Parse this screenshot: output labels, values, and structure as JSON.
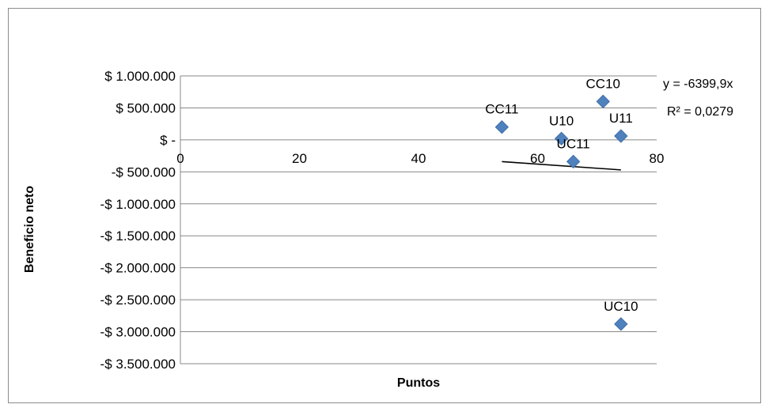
{
  "chart_data": {
    "type": "scatter",
    "title": "",
    "xlabel": "Puntos",
    "ylabel": "Beneficio neto",
    "xlim": [
      0,
      80
    ],
    "ylim": [
      -3500000,
      1000000
    ],
    "x_ticks": [
      0,
      20,
      40,
      60,
      80
    ],
    "x_tick_labels": [
      "0",
      "20",
      "40",
      "60",
      "80"
    ],
    "y_ticks": [
      1000000,
      500000,
      0,
      -500000,
      -1000000,
      -1500000,
      -2000000,
      -2500000,
      -3000000,
      -3500000
    ],
    "y_tick_labels": [
      "$ 1.000.000",
      "$ 500.000",
      "$ -",
      "-$ 500.000",
      "-$ 1.000.000",
      "-$ 1.500.000",
      "-$ 2.000.000",
      "-$ 2.500.000",
      "-$ 3.000.000",
      "-$ 3.500.000"
    ],
    "grid": "horizontal",
    "marker_color": "#4f81bd",
    "points": [
      {
        "label": "CC10",
        "x": 71,
        "y": 600000
      },
      {
        "label": "CC11",
        "x": 54,
        "y": 200000
      },
      {
        "label": "U10",
        "x": 64,
        "y": 20000
      },
      {
        "label": "U11",
        "x": 74,
        "y": 60000
      },
      {
        "label": "UC11",
        "x": 66,
        "y": -340000
      },
      {
        "label": "UC10",
        "x": 74,
        "y": -2880000
      }
    ],
    "trendline": {
      "type": "linear",
      "from": {
        "x": 54,
        "y": -340000
      },
      "to": {
        "x": 74,
        "y": -470000
      },
      "equation": "y = -6399,9x",
      "r_squared": "R² = 0,0279"
    }
  }
}
